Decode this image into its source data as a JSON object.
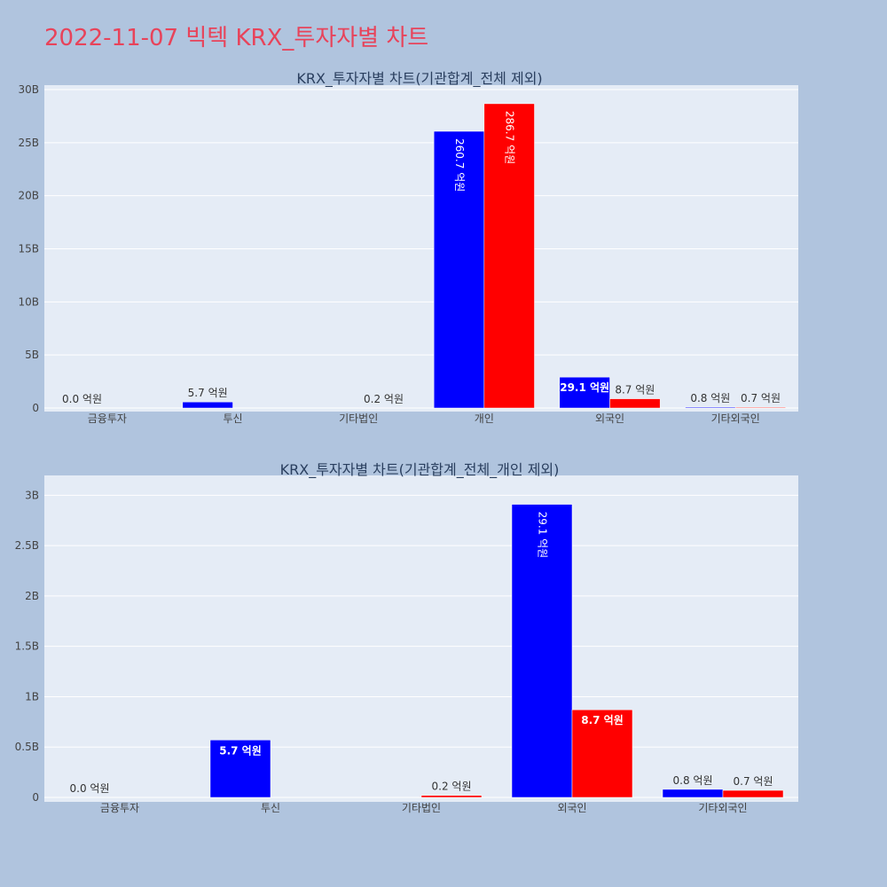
{
  "page": {
    "title": "2022-11-07 빅텍 KRX_투자자별 차트"
  },
  "colors": {
    "background": "#b0c4de",
    "plot_background": "#e5ecf6",
    "title": "#e8435a",
    "buy": "#0000ff",
    "sell": "#ff0000",
    "grid": "#ffffff",
    "text": "#2a3f5f"
  },
  "chart_data": [
    {
      "type": "bar",
      "title": "KRX_투자자별 차트(기관합계_전체 제외)",
      "categories": [
        "금융투자",
        "투신",
        "기타법인",
        "개인",
        "외국인",
        "기타외국인"
      ],
      "ylim": [
        0,
        30000000000
      ],
      "yticks": [
        0,
        5000000000,
        10000000000,
        15000000000,
        20000000000,
        25000000000,
        30000000000
      ],
      "ytick_labels": [
        "0",
        "5B",
        "10B",
        "15B",
        "20B",
        "25B",
        "30B"
      ],
      "series": [
        {
          "name": "buy",
          "color": "#0000ff",
          "values": [
            0,
            570000000,
            0,
            26070000000,
            2910000000,
            80000000
          ],
          "labels": [
            "0.0 억원",
            "5.7 억원",
            "",
            "260.7 억원",
            "29.1 억원",
            "0.8 억원"
          ]
        },
        {
          "name": "sell",
          "color": "#ff0000",
          "values": [
            0,
            0,
            20000000,
            28670000000,
            870000000,
            70000000
          ],
          "labels": [
            "",
            "",
            "0.2 억원",
            "286.7 억원",
            "8.7 억원",
            "0.7 억원"
          ]
        }
      ]
    },
    {
      "type": "bar",
      "title": "KRX_투자자별 차트(기관합계_전체_개인 제외)",
      "categories": [
        "금융투자",
        "투신",
        "기타법인",
        "외국인",
        "기타외국인"
      ],
      "ylim": [
        0,
        3100000000
      ],
      "yticks": [
        0,
        500000000,
        1000000000,
        1500000000,
        2000000000,
        2500000000,
        3000000000
      ],
      "ytick_labels": [
        "0",
        "0.5B",
        "1B",
        "1.5B",
        "2B",
        "2.5B",
        "3B"
      ],
      "series": [
        {
          "name": "buy",
          "color": "#0000ff",
          "values": [
            0,
            570000000,
            0,
            2910000000,
            80000000
          ],
          "labels": [
            "0.0 억원",
            "5.7 억원",
            "",
            "29.1 억원",
            "0.8 억원"
          ]
        },
        {
          "name": "sell",
          "color": "#ff0000",
          "values": [
            0,
            0,
            20000000,
            870000000,
            70000000
          ],
          "labels": [
            "",
            "",
            "0.2 억원",
            "8.7 억원",
            "0.7 억원"
          ]
        }
      ]
    }
  ]
}
